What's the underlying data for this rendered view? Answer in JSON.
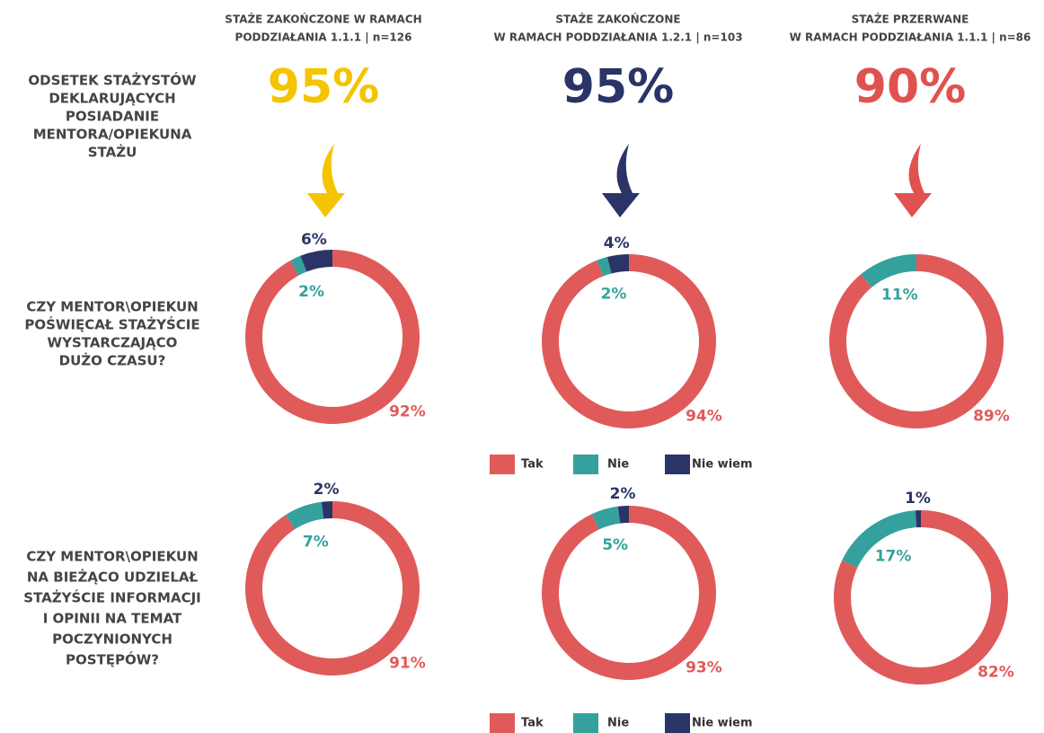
{
  "columns": [
    {
      "title_lines": [
        "STAŻE ZAKOŃCZONE W RAMACH",
        "PODDZIAŁANIA 1.1.1 | n=126"
      ],
      "headline": "95%",
      "color": "#f5c400"
    },
    {
      "title_lines": [
        "STAŻE ZAKOŃCZONE",
        "W RAMACH PODDZIAŁANIA 1.2.1 | n=103"
      ],
      "headline": "95%",
      "color": "#2b3467"
    },
    {
      "title_lines": [
        "STAŻE PRZERWANE",
        "W RAMACH PODDZIAŁANIA 1.1.1 | n=86"
      ],
      "headline": "90%",
      "color": "#e0524f"
    }
  ],
  "rows": [
    {
      "label_lines": [
        "ODSETEK STAŻYSTÓW",
        "DEKLARUJĄCYCH",
        "POSIADANIE",
        "MENTORA/OPIEKUNA",
        "STAŻU"
      ]
    },
    {
      "label_lines": [
        "CZY MENTOR\\OPIEKUN",
        "POŚWIĘCAŁ STAŻYŚCIE",
        "WYSTARCZAJĄCO",
        "DUŻO CZASU?"
      ]
    },
    {
      "label_lines": [
        "CZY MENTOR\\OPIEKUN",
        "NA BIEŻĄCO UDZIELAŁ",
        "STAŻYŚCIE INFORMACJI",
        "I OPINII NA TEMAT",
        "POCZYNIONYCH",
        "POSTĘPÓW?"
      ]
    }
  ],
  "chart_data": [
    {
      "type": "pie",
      "categories": [
        "Tak",
        "Nie",
        "Nie wiem"
      ],
      "values": [
        92,
        2,
        6
      ],
      "value_labels": [
        "92%",
        "2%",
        "6%"
      ],
      "colors": [
        "#e05a5a",
        "#35a19c",
        "#2b3467"
      ]
    },
    {
      "type": "pie",
      "categories": [
        "Tak",
        "Nie",
        "Nie wiem"
      ],
      "values": [
        94,
        2,
        4
      ],
      "value_labels": [
        "94%",
        "2%",
        "4%"
      ],
      "colors": [
        "#e05a5a",
        "#35a19c",
        "#2b3467"
      ]
    },
    {
      "type": "pie",
      "categories": [
        "Tak",
        "Nie"
      ],
      "values": [
        89,
        11
      ],
      "value_labels": [
        "89%",
        "11%"
      ],
      "colors": [
        "#e05a5a",
        "#35a19c"
      ]
    },
    {
      "type": "pie",
      "categories": [
        "Tak",
        "Nie",
        "Nie wiem"
      ],
      "values": [
        91,
        7,
        2
      ],
      "value_labels": [
        "91%",
        "7%",
        "2%"
      ],
      "colors": [
        "#e05a5a",
        "#35a19c",
        "#2b3467"
      ]
    },
    {
      "type": "pie",
      "categories": [
        "Tak",
        "Nie",
        "Nie wiem"
      ],
      "values": [
        93,
        5,
        2
      ],
      "value_labels": [
        "93%",
        "5%",
        "2%"
      ],
      "colors": [
        "#e05a5a",
        "#35a19c",
        "#2b3467"
      ]
    },
    {
      "type": "pie",
      "categories": [
        "Tak",
        "Nie",
        "Nie wiem"
      ],
      "values": [
        82,
        17,
        1
      ],
      "value_labels": [
        "82%",
        "17%",
        "1%"
      ],
      "colors": [
        "#e05a5a",
        "#35a19c",
        "#2b3467"
      ]
    }
  ]
}
